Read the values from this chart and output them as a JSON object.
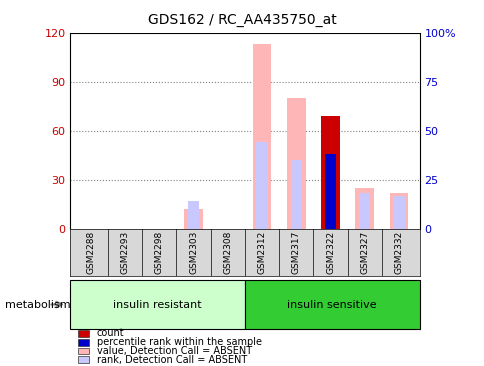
{
  "title": "GDS162 / RC_AA435750_at",
  "samples": [
    "GSM2288",
    "GSM2293",
    "GSM2298",
    "GSM2303",
    "GSM2308",
    "GSM2312",
    "GSM2317",
    "GSM2322",
    "GSM2327",
    "GSM2332"
  ],
  "group1_label": "insulin resistant",
  "group2_label": "insulin sensitive",
  "group1_count": 5,
  "group2_count": 5,
  "group_label_title": "metabolism",
  "ylim_left": [
    0,
    120
  ],
  "ylim_right": [
    0,
    100
  ],
  "yticks_left": [
    0,
    30,
    60,
    90,
    120
  ],
  "yticks_right": [
    0,
    25,
    50,
    75,
    100
  ],
  "value_absent": [
    0,
    0,
    0,
    12,
    0,
    113,
    80,
    0,
    25,
    22
  ],
  "rank_absent": [
    0,
    0,
    0,
    17,
    0,
    53,
    42,
    0,
    22,
    20
  ],
  "count_val": [
    0,
    0,
    0,
    0,
    0,
    0,
    0,
    69,
    0,
    0
  ],
  "percentile_rank": [
    0,
    0,
    0,
    0,
    0,
    0,
    0,
    46,
    0,
    0
  ],
  "color_value_absent": "#FFB6B6",
  "color_rank_absent": "#C8C8FF",
  "color_count": "#CC0000",
  "color_percentile": "#0000CC",
  "bg_group1": "#CCFFCC",
  "bg_group2": "#33CC33",
  "left_axis_color": "#CC0000",
  "right_axis_color": "#0000CC",
  "bar_width": 0.55,
  "figsize": [
    4.85,
    3.66
  ],
  "dpi": 100
}
